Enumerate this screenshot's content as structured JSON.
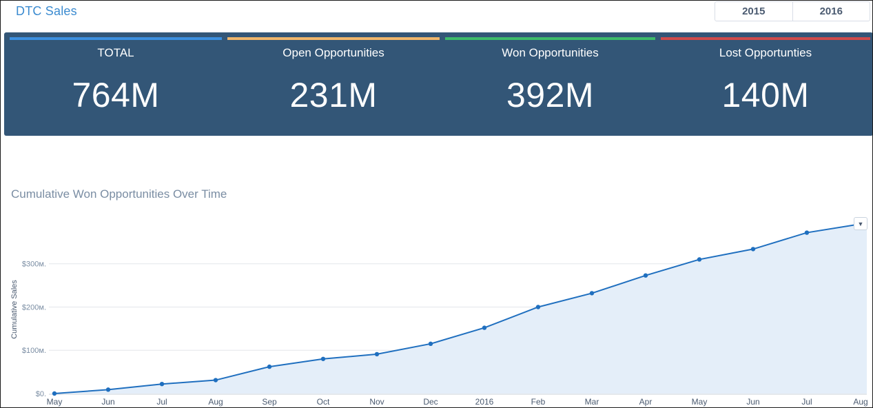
{
  "header": {
    "title": "DTC Sales",
    "years": [
      "2015",
      "2016"
    ]
  },
  "kpis": [
    {
      "label": "TOTAL",
      "value": "764M",
      "color": "#3b8fe0"
    },
    {
      "label": "Open Opportunities",
      "value": "231M",
      "color": "#f0b66b"
    },
    {
      "label": "Won Opportunities",
      "value": "392M",
      "color": "#3dbb6a"
    },
    {
      "label": "Lost Opportunties",
      "value": "140M",
      "color": "#cf4a4a"
    }
  ],
  "chart_menu_icon": "chevron-down-icon",
  "chart_data": {
    "type": "area",
    "title": "Cumulative Won Opportunities Over Time",
    "xlabel": "",
    "ylabel": "Cumulative Sales",
    "categories": [
      "May",
      "Jun",
      "Jul",
      "Aug",
      "Sep",
      "Oct",
      "Nov",
      "Dec",
      "2016",
      "Feb",
      "Mar",
      "Apr",
      "May",
      "Jun",
      "Jul",
      "Aug"
    ],
    "values": [
      0,
      9,
      22,
      31,
      62,
      80,
      91,
      115,
      152,
      200,
      232,
      273,
      310,
      334,
      372,
      392
    ],
    "yticks": [
      {
        "value": 0,
        "label": "$0."
      },
      {
        "value": 100,
        "label": "$100м."
      },
      {
        "value": 200,
        "label": "$200м."
      },
      {
        "value": 300,
        "label": "$300м."
      }
    ],
    "ylim": [
      0,
      392
    ],
    "grid": true,
    "colors": {
      "line": "#1f6fbf",
      "fill": "#e4eef9",
      "grid": "#e3e6ea",
      "axis_text": "#7a8da3"
    }
  }
}
